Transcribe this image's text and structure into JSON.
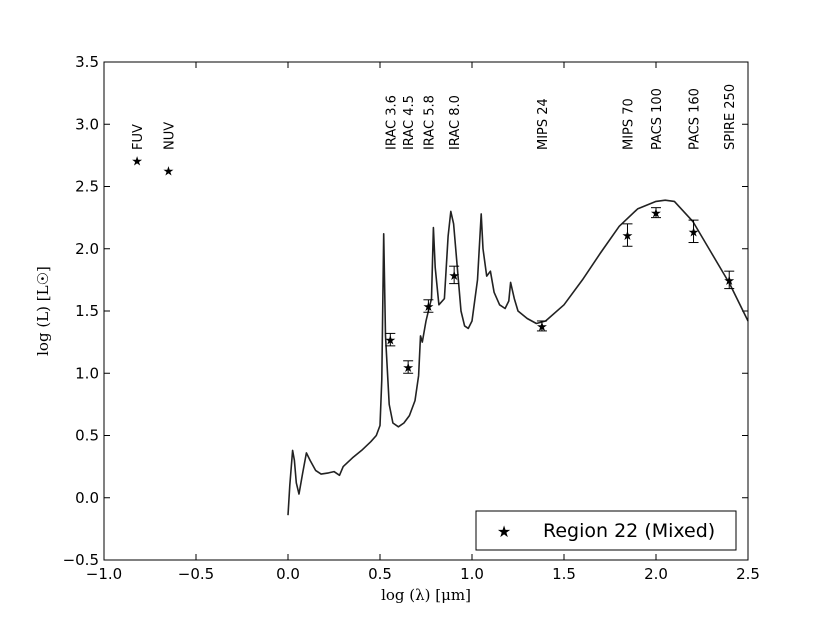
{
  "chart_data": {
    "type": "scatter",
    "xlabel": "log (λ) [μm]",
    "ylabel": "log (L) [L☉]",
    "xlim": [
      -1.0,
      2.5
    ],
    "ylim": [
      -0.5,
      3.5
    ],
    "xticks": [
      -1.0,
      -0.5,
      0.0,
      0.5,
      1.0,
      1.5,
      2.0,
      2.5
    ],
    "xtick_labels": [
      "−1.0",
      "−0.5",
      "0.0",
      "0.5",
      "1.0",
      "1.5",
      "2.0",
      "2.5"
    ],
    "yticks": [
      -0.5,
      0.0,
      0.5,
      1.0,
      1.5,
      2.0,
      2.5,
      3.0,
      3.5
    ],
    "ytick_labels": [
      "−0.5",
      "0.0",
      "0.5",
      "1.0",
      "1.5",
      "2.0",
      "2.5",
      "3.0",
      "3.5"
    ],
    "legend": {
      "label": "Region 22 (Mixed)",
      "placement": "lower-right"
    },
    "points": [
      {
        "label": "FUV",
        "x": -0.82,
        "y": 2.71,
        "err": 0.0
      },
      {
        "label": "NUV",
        "x": -0.65,
        "y": 2.63,
        "err": 0.0
      },
      {
        "label": "IRAC 3.6",
        "x": 0.556,
        "y": 1.27,
        "err": 0.05
      },
      {
        "label": "IRAC 4.5",
        "x": 0.653,
        "y": 1.05,
        "err": 0.05
      },
      {
        "label": "IRAC 5.8",
        "x": 0.763,
        "y": 1.54,
        "err": 0.05
      },
      {
        "label": "IRAC 8.0",
        "x": 0.903,
        "y": 1.79,
        "err": 0.07
      },
      {
        "label": "MIPS 24",
        "x": 1.38,
        "y": 1.38,
        "err": 0.04
      },
      {
        "label": "MIPS 70",
        "x": 1.845,
        "y": 2.11,
        "err": 0.09
      },
      {
        "label": "PACS 100",
        "x": 2.0,
        "y": 2.29,
        "err": 0.04
      },
      {
        "label": "PACS 160",
        "x": 2.204,
        "y": 2.14,
        "err": 0.09
      },
      {
        "label": "SPIRE 250",
        "x": 2.398,
        "y": 1.75,
        "err": 0.07
      }
    ],
    "model_curve": [
      [
        0.0,
        -0.14
      ],
      [
        0.01,
        0.1
      ],
      [
        0.025,
        0.38
      ],
      [
        0.035,
        0.3
      ],
      [
        0.045,
        0.12
      ],
      [
        0.06,
        0.03
      ],
      [
        0.08,
        0.2
      ],
      [
        0.1,
        0.36
      ],
      [
        0.12,
        0.3
      ],
      [
        0.15,
        0.22
      ],
      [
        0.18,
        0.19
      ],
      [
        0.22,
        0.2
      ],
      [
        0.25,
        0.21
      ],
      [
        0.28,
        0.18
      ],
      [
        0.3,
        0.25
      ],
      [
        0.35,
        0.32
      ],
      [
        0.4,
        0.38
      ],
      [
        0.45,
        0.45
      ],
      [
        0.48,
        0.5
      ],
      [
        0.5,
        0.58
      ],
      [
        0.51,
        0.95
      ],
      [
        0.52,
        2.12
      ],
      [
        0.53,
        1.3
      ],
      [
        0.55,
        0.75
      ],
      [
        0.57,
        0.6
      ],
      [
        0.6,
        0.57
      ],
      [
        0.63,
        0.6
      ],
      [
        0.66,
        0.66
      ],
      [
        0.69,
        0.78
      ],
      [
        0.71,
        0.98
      ],
      [
        0.72,
        1.3
      ],
      [
        0.73,
        1.25
      ],
      [
        0.75,
        1.42
      ],
      [
        0.76,
        1.48
      ],
      [
        0.78,
        1.6
      ],
      [
        0.79,
        2.17
      ],
      [
        0.8,
        1.85
      ],
      [
        0.82,
        1.55
      ],
      [
        0.85,
        1.6
      ],
      [
        0.87,
        2.1
      ],
      [
        0.885,
        2.3
      ],
      [
        0.9,
        2.2
      ],
      [
        0.92,
        1.85
      ],
      [
        0.94,
        1.5
      ],
      [
        0.96,
        1.38
      ],
      [
        0.98,
        1.36
      ],
      [
        1.0,
        1.42
      ],
      [
        1.03,
        1.75
      ],
      [
        1.05,
        2.28
      ],
      [
        1.06,
        2.0
      ],
      [
        1.08,
        1.78
      ],
      [
        1.1,
        1.82
      ],
      [
        1.12,
        1.65
      ],
      [
        1.15,
        1.55
      ],
      [
        1.18,
        1.52
      ],
      [
        1.2,
        1.58
      ],
      [
        1.21,
        1.73
      ],
      [
        1.23,
        1.6
      ],
      [
        1.25,
        1.5
      ],
      [
        1.3,
        1.44
      ],
      [
        1.35,
        1.4
      ],
      [
        1.4,
        1.42
      ],
      [
        1.5,
        1.55
      ],
      [
        1.6,
        1.75
      ],
      [
        1.7,
        1.97
      ],
      [
        1.8,
        2.18
      ],
      [
        1.9,
        2.32
      ],
      [
        2.0,
        2.38
      ],
      [
        2.05,
        2.39
      ],
      [
        2.1,
        2.38
      ],
      [
        2.2,
        2.22
      ],
      [
        2.3,
        1.97
      ],
      [
        2.4,
        1.72
      ],
      [
        2.5,
        1.42
      ]
    ]
  }
}
